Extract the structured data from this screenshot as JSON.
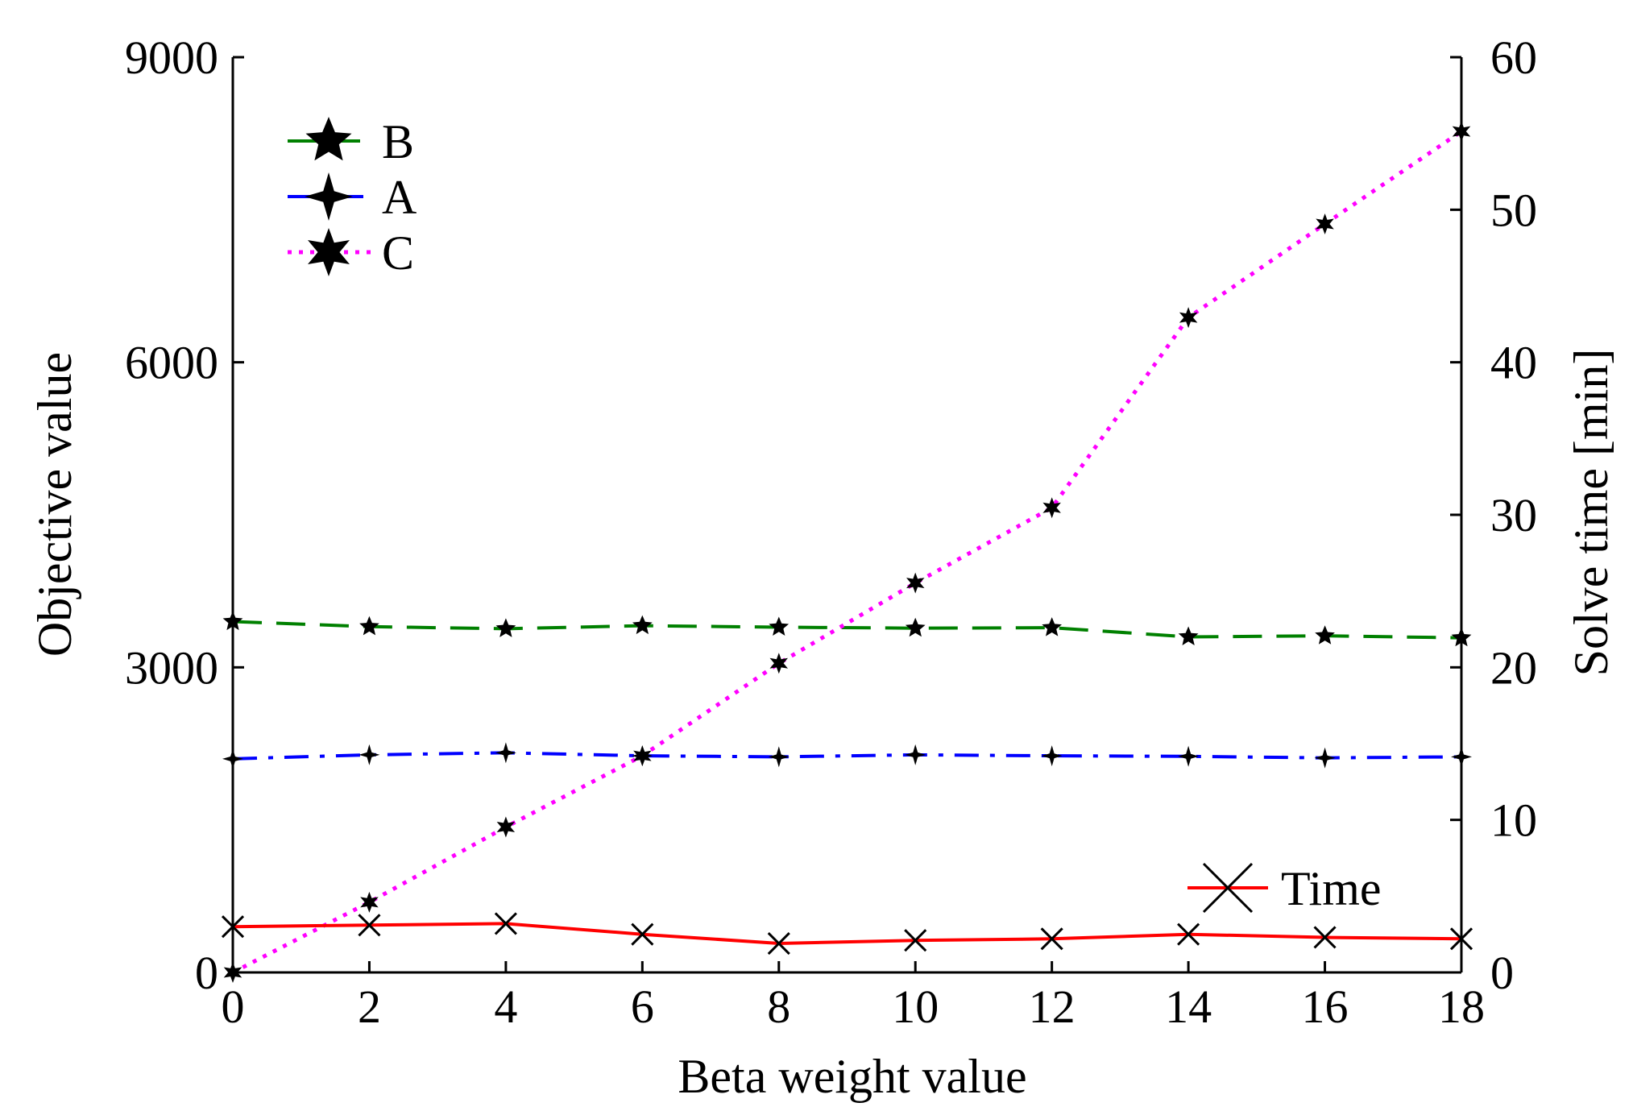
{
  "chart_data": {
    "type": "line",
    "xlabel": "Beta weight value",
    "ylabel": "Objective value",
    "y2label": "Solve time [min]",
    "xlim": [
      0,
      18
    ],
    "ylim": [
      0,
      9000
    ],
    "y2lim": [
      0,
      60
    ],
    "xticks": [
      "0",
      "2",
      "4",
      "6",
      "8",
      "10",
      "12",
      "14",
      "16",
      "18"
    ],
    "yticks": [
      "0",
      "3000",
      "6000",
      "9000"
    ],
    "y2ticks": [
      "0",
      "10",
      "20",
      "30",
      "40",
      "50",
      "60"
    ],
    "x": [
      0,
      2,
      4,
      6,
      8,
      10,
      12,
      14,
      16,
      18
    ],
    "series": [
      {
        "name": "B",
        "axis": "left",
        "color": "#008000",
        "dash": "dashed",
        "marker": "star5",
        "values": [
          3450,
          3400,
          3380,
          3410,
          3395,
          3385,
          3390,
          3300,
          3310,
          3290
        ]
      },
      {
        "name": "A",
        "axis": "left",
        "color": "#0000ff",
        "dash": "dashdot",
        "marker": "star4",
        "values": [
          2100,
          2140,
          2160,
          2130,
          2120,
          2140,
          2130,
          2125,
          2110,
          2120
        ]
      },
      {
        "name": "C",
        "axis": "left",
        "color": "#ff00ff",
        "dash": "dotted",
        "marker": "star6",
        "values": [
          0,
          690,
          1430,
          2130,
          3040,
          3830,
          4570,
          6440,
          7360,
          8270
        ]
      },
      {
        "name": "Time",
        "axis": "right",
        "color": "#ff0000",
        "dash": "solid",
        "marker": "x",
        "values": [
          3.0,
          3.1,
          3.2,
          2.5,
          1.9,
          2.1,
          2.2,
          2.5,
          2.3,
          2.2
        ]
      }
    ],
    "legend_main": {
      "position": "top-left",
      "entries": [
        "B",
        "A",
        "C"
      ]
    },
    "legend_time": {
      "position": "bottom-right",
      "entries": [
        "Time"
      ]
    }
  }
}
